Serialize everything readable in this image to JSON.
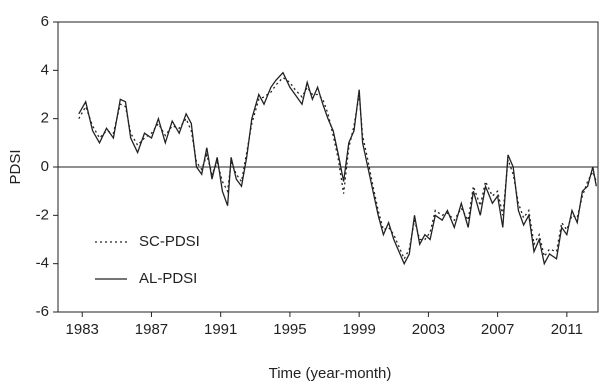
{
  "chart_data": {
    "type": "line",
    "x_label": "Time (year-month)",
    "y_label": "PDSI",
    "x": [
      1982.8,
      1983.2,
      1983.6,
      1984.0,
      1984.4,
      1984.8,
      1985.2,
      1985.5,
      1985.8,
      1986.2,
      1986.6,
      1987.0,
      1987.4,
      1987.8,
      1988.2,
      1988.6,
      1989.0,
      1989.3,
      1989.6,
      1989.9,
      1990.2,
      1990.5,
      1990.8,
      1991.1,
      1991.4,
      1991.6,
      1991.9,
      1992.2,
      1992.5,
      1992.8,
      1993.2,
      1993.5,
      1993.9,
      1994.2,
      1994.6,
      1995.0,
      1995.3,
      1995.7,
      1996.0,
      1996.3,
      1996.6,
      1996.9,
      1997.2,
      1997.5,
      1997.8,
      1998.1,
      1998.4,
      1998.7,
      1999.0,
      1999.2,
      1999.5,
      1999.8,
      2000.1,
      2000.4,
      2000.7,
      2001.0,
      2001.3,
      2001.6,
      2001.9,
      2002.2,
      2002.5,
      2002.8,
      2003.1,
      2003.4,
      2003.8,
      2004.1,
      2004.5,
      2004.9,
      2005.3,
      2005.6,
      2006.0,
      2006.3,
      2006.7,
      2007.0,
      2007.3,
      2007.6,
      2007.9,
      2008.2,
      2008.5,
      2008.8,
      2009.1,
      2009.4,
      2009.7,
      2010.0,
      2010.4,
      2010.7,
      2011.0,
      2011.3,
      2011.6,
      2011.9,
      2012.2,
      2012.5,
      2012.7
    ],
    "series": [
      {
        "name": "SC-PDSI",
        "color": "#222222",
        "dash": "2,3",
        "values": [
          2.0,
          2.5,
          1.7,
          1.2,
          1.5,
          1.4,
          2.6,
          2.5,
          1.4,
          0.9,
          1.2,
          1.4,
          1.8,
          1.3,
          1.7,
          1.6,
          2.0,
          1.5,
          0.2,
          -0.1,
          0.5,
          -0.3,
          0.2,
          -0.6,
          -1.0,
          0.2,
          -0.3,
          -0.6,
          0.6,
          1.8,
          2.8,
          2.9,
          3.1,
          3.4,
          3.7,
          3.5,
          3.2,
          2.9,
          3.3,
          3.0,
          3.0,
          2.8,
          2.2,
          1.3,
          0.3,
          -1.1,
          0.8,
          1.7,
          3.0,
          1.3,
          0.3,
          -0.8,
          -1.8,
          -2.6,
          -2.5,
          -2.8,
          -3.3,
          -3.8,
          -3.4,
          -2.2,
          -3.0,
          -3.0,
          -2.7,
          -1.8,
          -2.0,
          -1.9,
          -2.2,
          -1.7,
          -2.2,
          -0.8,
          -1.6,
          -0.6,
          -1.2,
          -1.0,
          -2.0,
          0.3,
          -0.3,
          -1.5,
          -2.1,
          -1.8,
          -3.2,
          -2.8,
          -3.7,
          -3.4,
          -3.5,
          -2.3,
          -2.6,
          -2.0,
          -2.1,
          -1.2,
          -0.6,
          -0.2,
          -0.6
        ]
      },
      {
        "name": "AL-PDSI",
        "color": "#222222",
        "dash": "none",
        "values": [
          2.2,
          2.7,
          1.5,
          1.0,
          1.6,
          1.2,
          2.8,
          2.7,
          1.2,
          0.6,
          1.4,
          1.2,
          2.0,
          1.0,
          1.9,
          1.4,
          2.2,
          1.8,
          0.0,
          -0.3,
          0.8,
          -0.5,
          0.4,
          -1.0,
          -1.6,
          0.4,
          -0.5,
          -0.8,
          0.4,
          2.0,
          3.0,
          2.6,
          3.3,
          3.6,
          3.9,
          3.3,
          3.0,
          2.6,
          3.5,
          2.8,
          3.3,
          2.6,
          2.0,
          1.5,
          0.5,
          -0.6,
          1.0,
          1.5,
          3.2,
          1.0,
          0.0,
          -1.0,
          -2.0,
          -2.8,
          -2.3,
          -3.0,
          -3.5,
          -4.0,
          -3.6,
          -2.0,
          -3.2,
          -2.8,
          -3.0,
          -2.0,
          -2.2,
          -1.8,
          -2.5,
          -1.5,
          -2.5,
          -1.0,
          -2.0,
          -0.8,
          -1.5,
          -1.2,
          -2.5,
          0.5,
          0.0,
          -1.8,
          -2.4,
          -2.0,
          -3.5,
          -3.0,
          -4.0,
          -3.6,
          -3.8,
          -2.5,
          -2.8,
          -1.8,
          -2.3,
          -1.0,
          -0.8,
          0.0,
          -0.8
        ]
      }
    ],
    "xlim": [
      1981.6,
      2012.8
    ],
    "xticks": [
      1983,
      1987,
      1991,
      1995,
      1999,
      2003,
      2007,
      2011
    ],
    "ylim": [
      -6,
      6
    ],
    "yticks": [
      -6,
      -4,
      -2,
      0,
      2,
      4,
      6
    ],
    "reference_line": 0,
    "legend": "lower left"
  }
}
